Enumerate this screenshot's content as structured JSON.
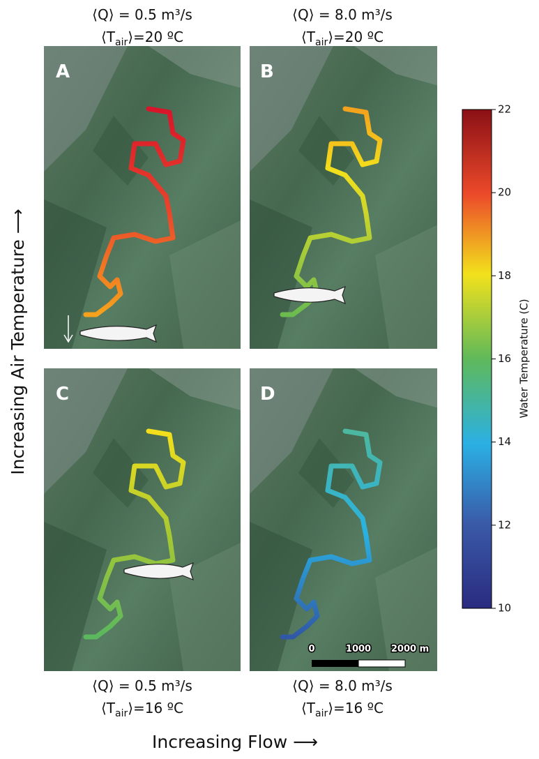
{
  "panels": [
    {
      "label": "A",
      "flow": "⟨Q⟩ = 0.5 m³/s",
      "t_open": "⟨T",
      "t_sub": "air",
      "t_close": "⟩=20 ºC"
    },
    {
      "label": "B",
      "flow": "⟨Q⟩ = 8.0 m³/s",
      "t_open": "⟨T",
      "t_sub": "air",
      "t_close": "⟩=20 ºC"
    },
    {
      "label": "C",
      "flow": "⟨Q⟩ = 0.5 m³/s",
      "t_open": "⟨T",
      "t_sub": "air",
      "t_close": "⟩=16 ºC"
    },
    {
      "label": "D",
      "flow": "⟨Q⟩ = 8.0 m³/s",
      "t_open": "⟨T",
      "t_sub": "air",
      "t_close": "⟩=16 ºC"
    }
  ],
  "colorbar": {
    "label": "Water Temperature (C)",
    "lim": [
      10,
      22
    ],
    "ticks": [
      10,
      12,
      14,
      16,
      18,
      20,
      22
    ]
  },
  "scalebar": [
    "0",
    "1000",
    "2000 m"
  ],
  "x_axis_label": "Increasing Flow  ⟶",
  "y_axis_label": "Increasing Air Temperature  ⟶"
}
